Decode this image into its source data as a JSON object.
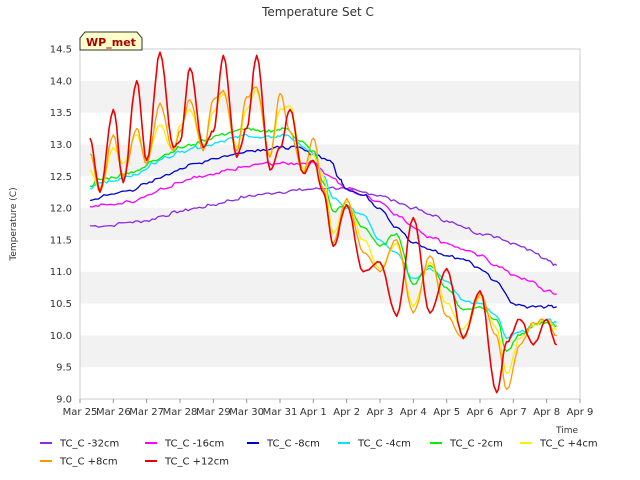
{
  "chart_data": {
    "type": "line",
    "title": "Temperature Set C",
    "xlabel": "Time",
    "ylabel": "Temperature (C)",
    "badge": "WP_met",
    "ylim": [
      9.0,
      14.5
    ],
    "xlim": [
      0,
      15
    ],
    "yticks": [
      9.0,
      9.5,
      10.0,
      10.5,
      11.0,
      11.5,
      12.0,
      12.5,
      13.0,
      13.5,
      14.0,
      14.5
    ],
    "xticks": [
      {
        "x": 0,
        "label": "Mar 25"
      },
      {
        "x": 1,
        "label": "Mar 26"
      },
      {
        "x": 2,
        "label": "Mar 27"
      },
      {
        "x": 3,
        "label": "Mar 28"
      },
      {
        "x": 4,
        "label": "Mar 29"
      },
      {
        "x": 5,
        "label": "Mar 30"
      },
      {
        "x": 6,
        "label": "Mar 31"
      },
      {
        "x": 7,
        "label": "Apr 1"
      },
      {
        "x": 8,
        "label": "Apr 2"
      },
      {
        "x": 9,
        "label": "Apr 3"
      },
      {
        "x": 10,
        "label": "Apr 4"
      },
      {
        "x": 11,
        "label": "Apr 5"
      },
      {
        "x": 12,
        "label": "Apr 6"
      },
      {
        "x": 13,
        "label": "Apr 7"
      },
      {
        "x": 14,
        "label": "Apr 8"
      },
      {
        "x": 15,
        "label": "Apr 9"
      }
    ],
    "grid": "horizontal bands",
    "legend_position": "bottom",
    "series": [
      {
        "name": "TC_C -32cm",
        "color": "#8a2be2",
        "x": [
          0.3,
          0.8,
          1.5,
          2.0,
          2.5,
          3.0,
          3.5,
          4.0,
          4.5,
          5.0,
          5.5,
          6.0,
          6.5,
          7.0,
          7.5,
          8.0,
          8.5,
          9.0,
          9.5,
          10.0,
          10.5,
          11.0,
          11.5,
          12.0,
          12.5,
          13.0,
          13.5,
          14.0,
          14.3
        ],
        "y": [
          11.72,
          11.72,
          11.78,
          11.8,
          11.88,
          11.95,
          12.0,
          12.05,
          12.12,
          12.18,
          12.22,
          12.25,
          12.28,
          12.3,
          12.32,
          12.3,
          12.25,
          12.2,
          12.1,
          12.0,
          11.9,
          11.8,
          11.7,
          11.6,
          11.55,
          11.45,
          11.35,
          11.2,
          11.1
        ]
      },
      {
        "name": "TC_C -16cm",
        "color": "#ff00ff",
        "x": [
          0.3,
          0.8,
          1.5,
          2.0,
          2.5,
          3.0,
          3.5,
          4.0,
          4.5,
          5.0,
          5.5,
          6.0,
          6.5,
          7.0,
          7.5,
          8.0,
          8.5,
          9.0,
          9.5,
          10.0,
          10.5,
          11.0,
          11.5,
          12.0,
          12.5,
          13.0,
          13.5,
          14.0,
          14.3
        ],
        "y": [
          12.02,
          12.05,
          12.1,
          12.2,
          12.3,
          12.4,
          12.48,
          12.52,
          12.6,
          12.65,
          12.7,
          12.7,
          12.7,
          12.72,
          12.5,
          12.3,
          12.2,
          12.1,
          11.9,
          11.7,
          11.55,
          11.45,
          11.35,
          11.25,
          11.1,
          10.95,
          10.85,
          10.7,
          10.65
        ]
      },
      {
        "name": "TC_C -8cm",
        "color": "#0000cc",
        "x": [
          0.3,
          0.8,
          1.5,
          2.0,
          2.5,
          3.0,
          3.5,
          4.0,
          4.5,
          5.0,
          5.5,
          6.0,
          6.5,
          7.0,
          7.5,
          7.8,
          8.0,
          8.5,
          9.0,
          9.5,
          10.0,
          10.5,
          11.0,
          11.5,
          12.0,
          12.5,
          13.0,
          13.5,
          14.0,
          14.3
        ],
        "y": [
          12.12,
          12.2,
          12.28,
          12.38,
          12.5,
          12.62,
          12.7,
          12.78,
          12.83,
          12.9,
          12.92,
          12.95,
          12.95,
          12.85,
          12.75,
          12.45,
          12.3,
          12.2,
          12.0,
          11.7,
          11.45,
          11.35,
          11.25,
          11.2,
          11.05,
          10.85,
          10.5,
          10.45,
          10.45,
          10.45
        ]
      },
      {
        "name": "TC_C -4cm",
        "color": "#00e5ff",
        "x": [
          0.3,
          0.6,
          1.0,
          1.4,
          1.8,
          2.2,
          2.6,
          3.0,
          3.4,
          3.8,
          4.2,
          4.6,
          5.0,
          5.4,
          5.8,
          6.2,
          6.6,
          7.0,
          7.3,
          7.6,
          8.0,
          8.5,
          9.0,
          9.5,
          10.0,
          10.5,
          11.0,
          11.5,
          12.0,
          12.5,
          12.8,
          13.2,
          13.6,
          14.0,
          14.3
        ],
        "y": [
          12.3,
          12.4,
          12.42,
          12.5,
          12.55,
          12.7,
          12.8,
          12.88,
          12.95,
          12.98,
          13.05,
          13.1,
          13.15,
          13.1,
          13.12,
          13.15,
          13.0,
          12.85,
          12.5,
          12.15,
          12.0,
          11.9,
          11.5,
          11.3,
          10.9,
          11.05,
          10.85,
          10.55,
          10.5,
          10.3,
          9.95,
          10.05,
          10.15,
          10.25,
          10.2
        ]
      },
      {
        "name": "TC_C -2cm",
        "color": "#00ee00",
        "x": [
          0.3,
          0.6,
          1.0,
          1.4,
          1.8,
          2.2,
          2.6,
          3.0,
          3.4,
          3.8,
          4.2,
          4.6,
          5.0,
          5.4,
          5.8,
          6.2,
          6.6,
          7.0,
          7.3,
          7.6,
          8.0,
          8.5,
          9.0,
          9.5,
          10.0,
          10.5,
          11.0,
          11.5,
          12.0,
          12.5,
          12.8,
          13.2,
          13.6,
          14.0,
          14.3
        ],
        "y": [
          12.35,
          12.45,
          12.48,
          12.55,
          12.6,
          12.75,
          12.85,
          12.95,
          13.0,
          13.08,
          13.15,
          13.2,
          13.25,
          13.2,
          13.22,
          13.25,
          13.05,
          12.9,
          12.4,
          11.95,
          12.05,
          11.7,
          11.4,
          11.6,
          10.8,
          11.1,
          10.75,
          10.4,
          10.45,
          10.25,
          9.75,
          10.0,
          10.15,
          10.2,
          10.15
        ]
      },
      {
        "name": "TC_C +4cm",
        "color": "#ffee00",
        "x": [
          0.3,
          0.6,
          1.0,
          1.3,
          1.7,
          2.0,
          2.4,
          2.8,
          3.0,
          3.3,
          3.7,
          4.0,
          4.3,
          4.7,
          5.0,
          5.3,
          5.7,
          6.0,
          6.3,
          6.7,
          7.0,
          7.3,
          7.6,
          8.0,
          8.5,
          9.0,
          9.5,
          10.0,
          10.5,
          11.0,
          11.5,
          12.0,
          12.5,
          12.8,
          13.2,
          13.6,
          14.0,
          14.3
        ],
        "y": [
          12.6,
          12.3,
          12.95,
          12.7,
          13.15,
          12.8,
          13.3,
          12.9,
          13.3,
          13.55,
          12.95,
          13.5,
          13.8,
          12.95,
          13.55,
          13.85,
          12.85,
          13.55,
          13.6,
          12.6,
          12.85,
          12.5,
          11.6,
          12.1,
          11.5,
          11.05,
          11.45,
          10.45,
          11.15,
          10.5,
          10.1,
          10.6,
          10.1,
          9.4,
          9.95,
          10.15,
          10.25,
          10.1
        ]
      },
      {
        "name": "TC_C +8cm",
        "color": "#ff9900",
        "x": [
          0.3,
          0.6,
          1.0,
          1.3,
          1.7,
          2.0,
          2.4,
          2.8,
          3.0,
          3.3,
          3.7,
          4.0,
          4.3,
          4.7,
          5.0,
          5.3,
          5.7,
          6.0,
          6.3,
          6.7,
          7.0,
          7.3,
          7.6,
          8.0,
          8.5,
          9.0,
          9.5,
          10.0,
          10.5,
          11.0,
          11.5,
          12.0,
          12.5,
          12.8,
          13.2,
          13.6,
          14.0,
          14.3
        ],
        "y": [
          12.85,
          12.25,
          13.15,
          12.5,
          13.25,
          12.7,
          13.65,
          12.9,
          13.2,
          13.7,
          12.9,
          13.7,
          13.85,
          12.9,
          13.75,
          13.9,
          12.8,
          13.8,
          13.2,
          12.55,
          13.1,
          12.3,
          11.45,
          12.15,
          11.3,
          11.0,
          11.5,
          10.35,
          11.25,
          10.3,
          9.95,
          10.65,
          10.0,
          9.15,
          9.85,
          10.2,
          10.25,
          10.0
        ]
      },
      {
        "name": "TC_C +12cm",
        "color": "#ee0000",
        "x": [
          0.3,
          0.6,
          1.0,
          1.3,
          1.7,
          2.0,
          2.4,
          2.8,
          3.0,
          3.3,
          3.7,
          4.0,
          4.3,
          4.7,
          5.0,
          5.3,
          5.7,
          6.0,
          6.3,
          6.7,
          7.0,
          7.3,
          7.6,
          8.0,
          8.5,
          9.0,
          9.5,
          10.0,
          10.5,
          11.0,
          11.5,
          12.0,
          12.5,
          12.8,
          13.2,
          13.6,
          14.0,
          14.3
        ],
        "y": [
          13.1,
          12.25,
          13.55,
          12.4,
          14.0,
          12.75,
          14.45,
          12.95,
          13.05,
          14.2,
          12.95,
          13.2,
          14.4,
          12.8,
          13.25,
          14.4,
          12.6,
          12.95,
          13.55,
          12.55,
          12.75,
          12.25,
          11.4,
          12.05,
          11.0,
          11.15,
          10.3,
          11.85,
          10.35,
          11.05,
          9.95,
          10.7,
          9.1,
          9.9,
          10.25,
          9.85,
          10.25,
          9.85
        ]
      }
    ]
  }
}
